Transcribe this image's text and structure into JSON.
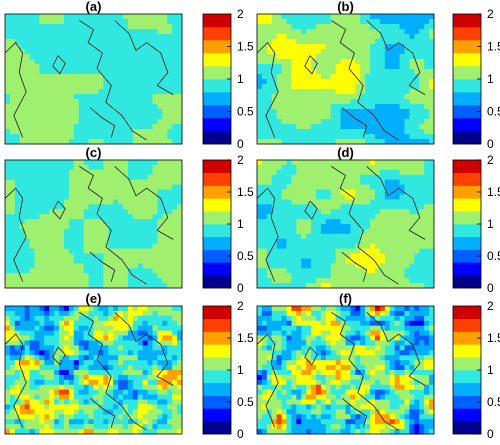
{
  "chart_data": [
    {
      "type": "heatmap",
      "title": "(a)",
      "colorbar": {
        "range": [
          0,
          2
        ],
        "ticks": [
          0,
          0.5,
          1,
          1.5,
          2
        ],
        "tick_labels": [
          "0",
          "0.5",
          "1",
          "1.5",
          "2"
        ]
      },
      "pattern": "smooth",
      "field_range": [
        0.75,
        1.25
      ]
    },
    {
      "type": "heatmap",
      "title": "(b)",
      "colorbar": {
        "range": [
          0,
          2
        ],
        "ticks": [
          0,
          0.5,
          1,
          1.5,
          2
        ],
        "tick_labels": [
          "0",
          "0.5",
          "1",
          "1.5",
          "2"
        ]
      },
      "pattern": "smooth",
      "field_range": [
        0.55,
        1.45
      ]
    },
    {
      "type": "heatmap",
      "title": "(c)",
      "colorbar": {
        "range": [
          0,
          2
        ],
        "ticks": [
          0,
          0.5,
          1,
          1.5,
          2
        ],
        "tick_labels": [
          "0",
          "0.5",
          "1",
          "1.5",
          "2"
        ]
      },
      "pattern": "smooth",
      "field_range": [
        0.8,
        1.25
      ]
    },
    {
      "type": "heatmap",
      "title": "(d)",
      "colorbar": {
        "range": [
          0,
          2
        ],
        "ticks": [
          0,
          0.5,
          1,
          1.5,
          2
        ],
        "tick_labels": [
          "0",
          "0.5",
          "1",
          "1.5",
          "2"
        ]
      },
      "pattern": "smooth",
      "field_range": [
        0.6,
        1.35
      ]
    },
    {
      "type": "heatmap",
      "title": "(e)",
      "colorbar": {
        "range": [
          0,
          2
        ],
        "ticks": [
          0,
          0.5,
          1,
          1.5,
          2
        ],
        "tick_labels": [
          "0",
          "0.5",
          "1",
          "1.5",
          "2"
        ]
      },
      "pattern": "noisy",
      "field_range": [
        0.1,
        1.9
      ]
    },
    {
      "type": "heatmap",
      "title": "(f)",
      "colorbar": {
        "range": [
          0,
          2
        ],
        "ticks": [
          0,
          0.5,
          1,
          1.5,
          2
        ],
        "tick_labels": [
          "0",
          "0.5",
          "1",
          "1.5",
          "2"
        ]
      },
      "pattern": "noisy",
      "field_range": [
        0.05,
        2.0
      ]
    }
  ],
  "colormap": [
    "#00008f",
    "#0000ff",
    "#0060ff",
    "#00b0ff",
    "#30e8e0",
    "#a0f070",
    "#ffff00",
    "#ffa000",
    "#ff4000",
    "#d00000"
  ]
}
